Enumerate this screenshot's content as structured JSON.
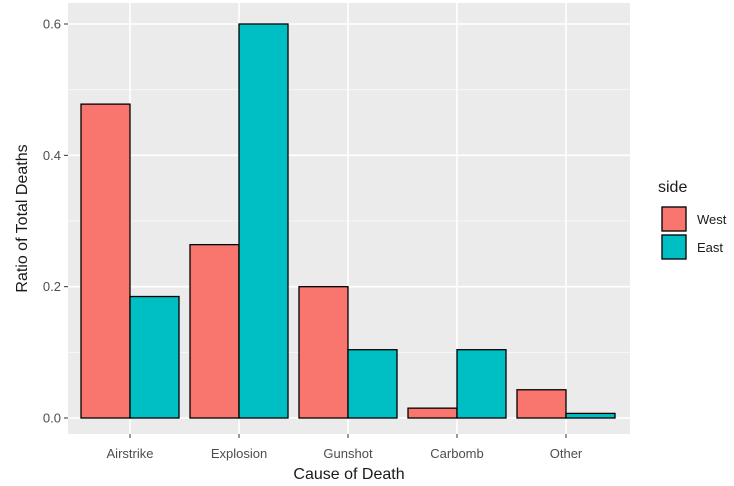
{
  "chart_data": {
    "type": "bar",
    "categories": [
      "Airstrike",
      "Explosion",
      "Gunshot",
      "Carbomb",
      "Other"
    ],
    "series": [
      {
        "name": "West",
        "color": "#F8766D",
        "values": [
          0.478,
          0.264,
          0.2,
          0.015,
          0.043
        ]
      },
      {
        "name": "East",
        "color": "#00BFC4",
        "values": [
          0.185,
          0.6,
          0.104,
          0.104,
          0.007
        ]
      }
    ],
    "xlabel": "Cause of Death",
    "ylabel": "Ratio of Total Deaths",
    "ylim": [
      0,
      0.6
    ],
    "yticks": [
      0.0,
      0.2,
      0.4,
      0.6
    ],
    "ytick_labels": [
      "0.0",
      "0.2",
      "0.4",
      "0.6"
    ],
    "legend_title": "side",
    "legend_position": "right",
    "grid": true,
    "panel_background": "#EBEBEB",
    "grid_color": "#FFFFFF"
  }
}
